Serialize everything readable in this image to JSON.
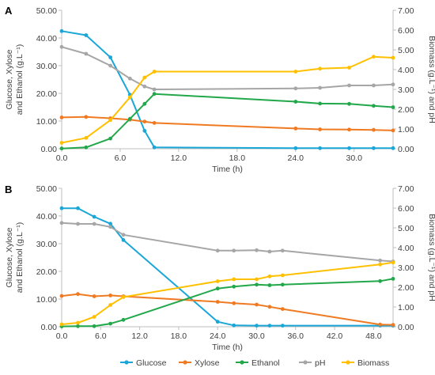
{
  "colors": {
    "glucose": "#1AA7D8",
    "xylose": "#F07A22",
    "ethanol": "#22A84A",
    "ph": "#A6A6A6",
    "biomass": "#FFC000",
    "axis": "#BFBFBF",
    "text": "#404040"
  },
  "legend": [
    "Glucose",
    "Xylose",
    "Ethanol",
    "pH",
    "Biomass"
  ],
  "chart_data": [
    {
      "type": "line",
      "panel": "A",
      "xlabel": "Time (h)",
      "ylabel_line1": "Glucose, Xylose",
      "ylabel_line2": "and Ethanol (g.L⁻¹)",
      "y2label": "Biomass (g.L⁻¹) and pH",
      "xlim": [
        0,
        34
      ],
      "xticks": [
        0,
        6,
        12,
        18,
        24,
        30
      ],
      "xtick_labels": [
        "0.0",
        "6.0",
        "12.0",
        "18.0",
        "24.0",
        "30.0"
      ],
      "ylim": [
        0,
        50
      ],
      "yticks": [
        "0.00",
        "10.00",
        "20.00",
        "30.00",
        "40.00",
        "50.00"
      ],
      "y2lim": [
        0,
        7
      ],
      "y2ticks": [
        "0.00",
        "1.00",
        "2.00",
        "3.00",
        "4.00",
        "5.00",
        "6.00",
        "7.00"
      ],
      "grid": false,
      "series": [
        {
          "name": "Glucose",
          "axis": "left",
          "x": [
            0,
            2.5,
            5,
            7,
            8.5,
            9.5,
            24,
            26.5,
            29.5,
            32,
            34
          ],
          "y": [
            42.5,
            41,
            33,
            19.5,
            6.5,
            0.5,
            0.2,
            0.2,
            0.2,
            0.2,
            0.2
          ]
        },
        {
          "name": "Xylose",
          "axis": "left",
          "x": [
            0,
            2.5,
            5,
            7,
            8.5,
            9.5,
            24,
            26.5,
            29.5,
            32,
            34
          ],
          "y": [
            11.3,
            11.5,
            11,
            10.5,
            9.8,
            9.3,
            7.3,
            7,
            6.9,
            6.8,
            6.6
          ]
        },
        {
          "name": "Ethanol",
          "axis": "left",
          "x": [
            0,
            2.5,
            5,
            7,
            8.5,
            9.5,
            24,
            26.5,
            29.5,
            32,
            34
          ],
          "y": [
            0.1,
            0.5,
            3.7,
            10.8,
            16.2,
            19.8,
            17,
            16.3,
            16.2,
            15.5,
            15
          ]
        },
        {
          "name": "pH",
          "axis": "right",
          "x": [
            0,
            2.5,
            5,
            7,
            8.5,
            9.5,
            24,
            26.5,
            29.5,
            32,
            34
          ],
          "y": [
            5.15,
            4.8,
            4.2,
            3.55,
            3.15,
            3.0,
            3.05,
            3.08,
            3.2,
            3.2,
            3.25
          ]
        },
        {
          "name": "Biomass",
          "axis": "right",
          "x": [
            0,
            2.5,
            5,
            7,
            8.5,
            9.5,
            24,
            26.5,
            29.5,
            32,
            34
          ],
          "y": [
            0.3,
            0.55,
            1.45,
            2.6,
            3.6,
            3.9,
            3.9,
            4.05,
            4.1,
            4.65,
            4.6
          ]
        }
      ]
    },
    {
      "type": "line",
      "panel": "B",
      "xlabel": "Time (h)",
      "ylabel_line1": "Glucose, Xylose",
      "ylabel_line2": "and Ethanol (g.L⁻¹)",
      "y2label": "Biomass (g.L⁻¹) and pH",
      "xlim": [
        0,
        51
      ],
      "xticks": [
        0,
        6,
        12,
        18,
        24,
        30,
        36,
        42,
        48
      ],
      "xtick_labels": [
        "0.0",
        "6.0",
        "12.0",
        "18.0",
        "24.0",
        "30.0",
        "36.0",
        "42.0",
        "48.0"
      ],
      "ylim": [
        0,
        50
      ],
      "yticks": [
        "0.00",
        "10.00",
        "20.00",
        "30.00",
        "40.00",
        "50.00"
      ],
      "y2lim": [
        0,
        7
      ],
      "y2ticks": [
        "0.00",
        "1.00",
        "2.00",
        "3.00",
        "4.00",
        "5.00",
        "6.00",
        "7.00"
      ],
      "grid": false,
      "series": [
        {
          "name": "Glucose",
          "axis": "left",
          "x": [
            0,
            2.5,
            5,
            7.5,
            9.5,
            24,
            26.5,
            30,
            32,
            34,
            49,
            51
          ],
          "y": [
            42.8,
            42.8,
            39.7,
            37.2,
            31.3,
            1.8,
            0.5,
            0.4,
            0.4,
            0.4,
            0.4,
            0.4
          ]
        },
        {
          "name": "Xylose",
          "axis": "left",
          "x": [
            0,
            2.5,
            5,
            7.5,
            9.5,
            24,
            26.5,
            30,
            32,
            34,
            49,
            51
          ],
          "y": [
            11.1,
            11.8,
            11,
            11.3,
            11,
            9,
            8.5,
            8,
            7.2,
            6.4,
            0.8,
            0.7
          ]
        },
        {
          "name": "Ethanol",
          "axis": "left",
          "x": [
            0,
            2.5,
            5,
            7.5,
            9.5,
            24,
            26.5,
            30,
            32,
            34,
            49,
            51
          ],
          "y": [
            0.1,
            0.2,
            0.2,
            1.1,
            2.5,
            13.8,
            14.5,
            15.2,
            15,
            15.2,
            16.5,
            17.3
          ]
        },
        {
          "name": "pH",
          "axis": "right",
          "x": [
            0,
            2.5,
            5,
            7.5,
            9.5,
            24,
            26.5,
            30,
            32,
            34,
            49,
            51
          ],
          "y": [
            5.25,
            5.2,
            5.2,
            5.05,
            4.65,
            3.85,
            3.85,
            3.87,
            3.8,
            3.85,
            3.35,
            3.3
          ]
        },
        {
          "name": "Biomass",
          "axis": "right",
          "x": [
            0,
            2.5,
            5,
            7.5,
            9.5,
            24,
            26.5,
            30,
            32,
            34,
            49,
            51
          ],
          "y": [
            0.12,
            0.2,
            0.5,
            1.1,
            1.5,
            2.3,
            2.4,
            2.4,
            2.55,
            2.6,
            3.15,
            3.25
          ]
        }
      ]
    }
  ]
}
